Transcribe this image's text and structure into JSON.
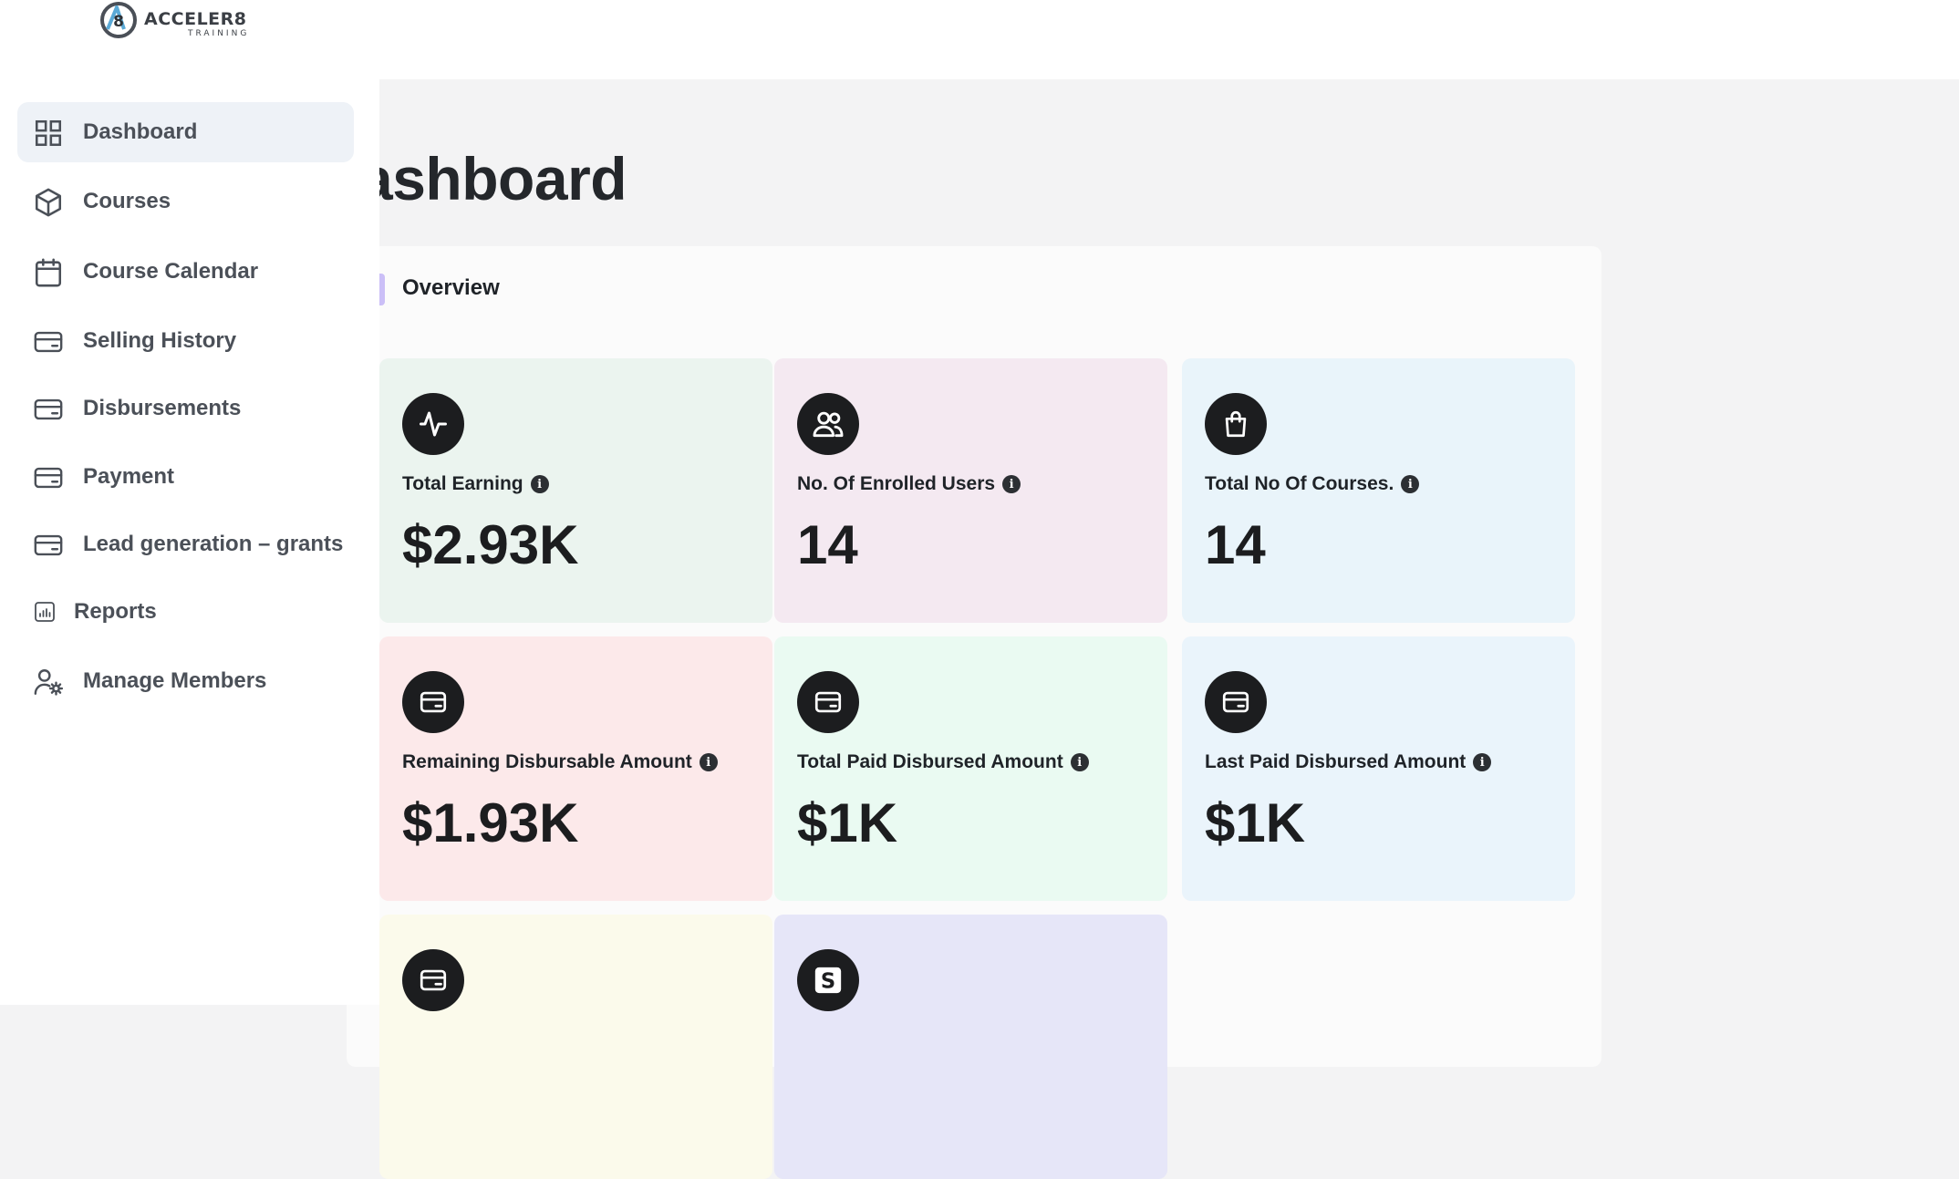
{
  "brand": {
    "logo_main": "ACCELER8",
    "logo_sub": "TRAINING"
  },
  "sidebar": {
    "items": [
      {
        "label": "Dashboard",
        "icon": "grid-icon",
        "active": true
      },
      {
        "label": "Courses",
        "icon": "cube-icon"
      },
      {
        "label": "Course Calendar",
        "icon": "calendar-icon"
      },
      {
        "label": "Selling History",
        "icon": "card-icon"
      },
      {
        "label": "Disbursements",
        "icon": "card-icon"
      },
      {
        "label": "Payment",
        "icon": "card-icon"
      },
      {
        "label": "Lead generation – grants",
        "icon": "card-icon"
      },
      {
        "label": "Reports",
        "icon": "bar-chart-icon"
      },
      {
        "label": "Manage Members",
        "icon": "user-gear-icon"
      }
    ]
  },
  "main": {
    "title": "ashboard",
    "section_label": "Overview",
    "cards": [
      {
        "label": "Total Earning",
        "value": "$2.93K",
        "icon": "activity-icon",
        "bg": "#ebf4ef"
      },
      {
        "label": "No. Of Enrolled Users",
        "value": "14",
        "icon": "users-icon",
        "bg": "#f4e9f1"
      },
      {
        "label": "Total No Of Courses.",
        "value": "14",
        "icon": "shopping-bag-icon",
        "bg": "#e9f4fa"
      },
      {
        "label": "Remaining Disbursable Amount",
        "value": "$1.93K",
        "icon": "card-icon",
        "bg": "#fce9ea"
      },
      {
        "label": "Total Paid Disbursed Amount",
        "value": "$1K",
        "icon": "card-icon",
        "bg": "#eafaf2"
      },
      {
        "label": "Last Paid Disbursed Amount",
        "value": "$1K",
        "icon": "card-icon",
        "bg": "#eaf4fb"
      },
      {
        "label": "",
        "value": "",
        "icon": "card-icon",
        "bg": "#fbfaeb"
      },
      {
        "label": "",
        "value": "",
        "icon": "stripe-icon",
        "bg": "#e6e6f8"
      }
    ]
  },
  "colors": {
    "accent_bar": "#cbbff7",
    "badge": "#1c1d1f",
    "active_nav": "#eef2f7"
  }
}
